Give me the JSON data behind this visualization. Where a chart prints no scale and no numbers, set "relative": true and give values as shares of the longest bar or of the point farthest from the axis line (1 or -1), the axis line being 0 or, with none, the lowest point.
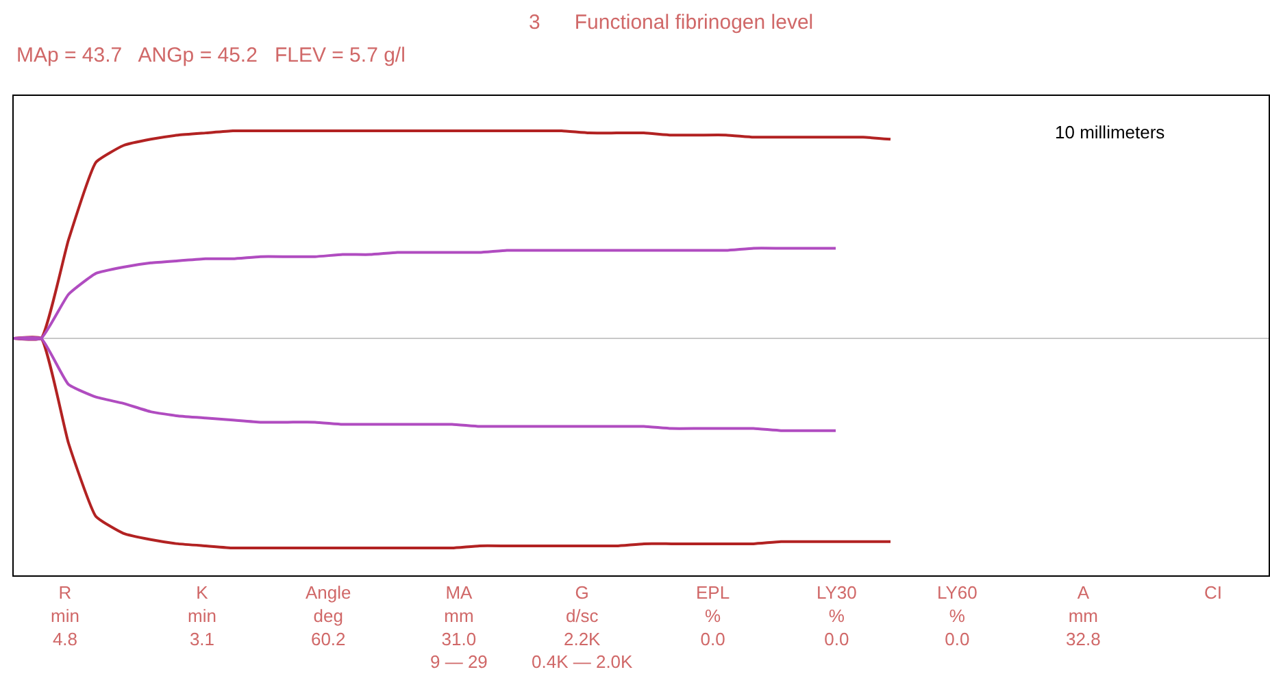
{
  "chart_data": {
    "type": "line",
    "relative": true,
    "title": "3      Functional fibrinogen level",
    "subtitle": "MAp = 43.7   ANGp = 45.2   FLEV = 5.7 g/l",
    "categories": [
      null,
      null,
      null,
      null,
      null,
      null,
      null,
      null,
      null,
      null,
      null,
      null,
      null,
      null,
      null,
      null,
      null,
      null,
      null,
      null,
      null,
      null,
      null,
      null,
      null,
      null,
      null,
      null,
      null,
      null,
      null,
      null,
      null
    ],
    "series": [
      {
        "color": "#b22222",
        "values": [
          0,
          0,
          0.47,
          0.84,
          0.92,
          0.95,
          0.97,
          0.98,
          0.99,
          0.99,
          0.99,
          0.99,
          0.99,
          0.99,
          0.99,
          0.99,
          0.99,
          0.99,
          0.99,
          0.99,
          0.99,
          0.98,
          0.98,
          0.98,
          0.97,
          0.97,
          0.97,
          0.96,
          0.96,
          0.96,
          0.96,
          0.96,
          0.95
        ]
      },
      {
        "color": "#b22222",
        "values": [
          0,
          0,
          -0.5,
          -0.85,
          -0.93,
          -0.96,
          -0.98,
          -0.99,
          -1,
          -1,
          -1,
          -1,
          -1,
          -1,
          -1,
          -1,
          -1,
          -0.99,
          -0.99,
          -0.99,
          -0.99,
          -0.99,
          -0.99,
          -0.98,
          -0.98,
          -0.98,
          -0.98,
          -0.98,
          -0.97,
          -0.97,
          -0.97,
          -0.97,
          -0.97
        ]
      },
      {
        "color": "#b04cc0",
        "values": [
          0,
          0,
          0.21,
          0.31,
          0.34,
          0.36,
          0.37,
          0.38,
          0.38,
          0.39,
          0.39,
          0.39,
          0.4,
          0.4,
          0.41,
          0.41,
          0.41,
          0.41,
          0.42,
          0.42,
          0.42,
          0.42,
          0.42,
          0.42,
          0.42,
          0.42,
          0.42,
          0.43,
          0.43,
          0.43,
          0.43,
          null,
          null
        ]
      },
      {
        "color": "#b04cc0",
        "values": [
          0,
          0,
          -0.22,
          -0.28,
          -0.31,
          -0.35,
          -0.37,
          -0.38,
          -0.39,
          -0.4,
          -0.4,
          -0.4,
          -0.41,
          -0.41,
          -0.41,
          -0.41,
          -0.41,
          -0.42,
          -0.42,
          -0.42,
          -0.42,
          -0.42,
          -0.42,
          -0.42,
          -0.43,
          -0.43,
          -0.43,
          -0.43,
          -0.44,
          -0.44,
          -0.44,
          null,
          null
        ]
      }
    ],
    "marker": "none",
    "line_style": "solid",
    "annotations": [
      "10 millimeters",
      "R\nmin\n4.8",
      "K\nmin\n3.1",
      "Angle\ndeg\n60.2",
      "MA\nmm\n31.0\n9 — 29",
      "G\nd/sc\n2.2K\n0.4K — 2.0K",
      "EPL\n%\n0.0",
      "LY30\n%\n0.0",
      "LY60\n%\n0.0",
      "A\nmm\n32.8",
      "CI"
    ]
  }
}
